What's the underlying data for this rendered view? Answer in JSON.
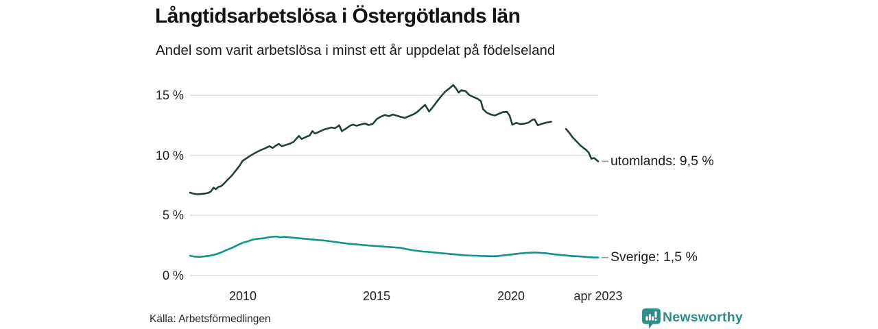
{
  "footer": {
    "source": "Källa: Arbetsförmedlingen",
    "brand": "Newsworthy"
  },
  "colors": {
    "utomlands_line": "#21403c",
    "sverige_line": "#11948a",
    "grid": "#e4e4e8",
    "connector": "#999999",
    "text": "#1a1a1a",
    "brand": "#2e8c8a"
  },
  "chart_data": {
    "type": "line",
    "title": "Långtidsarbetslösa i Östergötlands län",
    "subtitle": "Andel som varit arbetslösa i minst ett år uppdelat på födelseland",
    "xlabel": "",
    "ylabel": "",
    "unit": "%",
    "grid": "horizontal-only",
    "legend_position": "direct-labels-right",
    "x_axis": {
      "range": [
        2008.0,
        2023.25
      ],
      "ticks": [
        {
          "label": "2010",
          "year": 2010
        },
        {
          "label": "2015",
          "year": 2015
        },
        {
          "label": "2020",
          "year": 2020
        },
        {
          "label": "apr 2023",
          "year": 2023.25
        }
      ]
    },
    "y_axis": {
      "range": [
        0,
        16.6
      ],
      "ticks": [
        {
          "label": "15 %",
          "value": 15
        },
        {
          "label": "10 %",
          "value": 10
        },
        {
          "label": "5 %",
          "value": 5
        },
        {
          "label": "0 %",
          "value": 0
        }
      ]
    },
    "series": [
      {
        "name": "utomlands",
        "label": "utomlands: 9,5 %",
        "end_value": 9.5,
        "color": "#21403c",
        "segments": [
          [
            [
              2008.04,
              6.9
            ],
            [
              2008.15,
              6.82
            ],
            [
              2008.3,
              6.76
            ],
            [
              2008.45,
              6.78
            ],
            [
              2008.6,
              6.82
            ],
            [
              2008.72,
              6.88
            ],
            [
              2008.82,
              7.0
            ],
            [
              2008.92,
              7.32
            ],
            [
              2009.0,
              7.18
            ],
            [
              2009.1,
              7.38
            ],
            [
              2009.2,
              7.44
            ],
            [
              2009.32,
              7.68
            ],
            [
              2009.42,
              7.92
            ],
            [
              2009.5,
              8.1
            ],
            [
              2009.6,
              8.32
            ],
            [
              2009.7,
              8.6
            ],
            [
              2009.8,
              8.88
            ],
            [
              2009.9,
              9.18
            ],
            [
              2010.0,
              9.55
            ],
            [
              2010.12,
              9.72
            ],
            [
              2010.25,
              9.92
            ],
            [
              2010.4,
              10.12
            ],
            [
              2010.55,
              10.3
            ],
            [
              2010.7,
              10.46
            ],
            [
              2010.85,
              10.6
            ],
            [
              2011.0,
              10.76
            ],
            [
              2011.12,
              10.62
            ],
            [
              2011.25,
              10.82
            ],
            [
              2011.35,
              10.95
            ],
            [
              2011.46,
              10.76
            ],
            [
              2011.6,
              10.86
            ],
            [
              2011.75,
              10.96
            ],
            [
              2011.9,
              11.12
            ],
            [
              2012.0,
              11.38
            ],
            [
              2012.1,
              11.62
            ],
            [
              2012.2,
              11.36
            ],
            [
              2012.35,
              11.52
            ],
            [
              2012.5,
              11.66
            ],
            [
              2012.6,
              12.02
            ],
            [
              2012.7,
              11.82
            ],
            [
              2012.85,
              11.96
            ],
            [
              2013.0,
              12.12
            ],
            [
              2013.15,
              12.22
            ],
            [
              2013.3,
              12.32
            ],
            [
              2013.45,
              12.26
            ],
            [
              2013.6,
              12.5
            ],
            [
              2013.7,
              12.02
            ],
            [
              2013.85,
              12.22
            ],
            [
              2014.0,
              12.46
            ],
            [
              2014.12,
              12.56
            ],
            [
              2014.25,
              12.46
            ],
            [
              2014.4,
              12.56
            ],
            [
              2014.55,
              12.66
            ],
            [
              2014.7,
              12.52
            ],
            [
              2014.85,
              12.62
            ],
            [
              2015.0,
              13.02
            ],
            [
              2015.15,
              13.22
            ],
            [
              2015.3,
              13.36
            ],
            [
              2015.45,
              13.26
            ],
            [
              2015.6,
              13.4
            ],
            [
              2015.75,
              13.3
            ],
            [
              2015.9,
              13.2
            ],
            [
              2016.05,
              13.12
            ],
            [
              2016.2,
              13.26
            ],
            [
              2016.35,
              13.4
            ],
            [
              2016.5,
              13.6
            ],
            [
              2016.65,
              13.9
            ],
            [
              2016.8,
              14.2
            ],
            [
              2016.95,
              13.65
            ],
            [
              2017.1,
              14.05
            ],
            [
              2017.25,
              14.5
            ],
            [
              2017.4,
              14.92
            ],
            [
              2017.55,
              15.3
            ],
            [
              2017.7,
              15.56
            ],
            [
              2017.85,
              15.85
            ],
            [
              2017.95,
              15.58
            ],
            [
              2018.05,
              15.22
            ],
            [
              2018.15,
              15.42
            ],
            [
              2018.3,
              15.36
            ],
            [
              2018.45,
              15.02
            ],
            [
              2018.6,
              14.86
            ],
            [
              2018.75,
              14.72
            ],
            [
              2018.88,
              14.52
            ],
            [
              2018.96,
              13.85
            ],
            [
              2019.1,
              13.55
            ],
            [
              2019.25,
              13.4
            ],
            [
              2019.4,
              13.32
            ],
            [
              2019.55,
              13.46
            ],
            [
              2019.7,
              13.6
            ],
            [
              2019.85,
              13.62
            ],
            [
              2019.95,
              13.32
            ],
            [
              2020.05,
              12.56
            ],
            [
              2020.2,
              12.7
            ],
            [
              2020.35,
              12.6
            ],
            [
              2020.5,
              12.64
            ],
            [
              2020.65,
              12.72
            ],
            [
              2020.8,
              12.96
            ],
            [
              2020.88,
              13.0
            ],
            [
              2021.0,
              12.5
            ],
            [
              2021.15,
              12.62
            ],
            [
              2021.3,
              12.72
            ],
            [
              2021.5,
              12.8
            ]
          ],
          [
            [
              2022.05,
              12.2
            ],
            [
              2022.15,
              11.95
            ],
            [
              2022.3,
              11.5
            ],
            [
              2022.45,
              11.15
            ],
            [
              2022.6,
              10.8
            ],
            [
              2022.7,
              10.62
            ],
            [
              2022.8,
              10.46
            ],
            [
              2022.9,
              10.22
            ],
            [
              2023.0,
              9.72
            ],
            [
              2023.1,
              9.78
            ],
            [
              2023.25,
              9.5
            ]
          ]
        ]
      },
      {
        "name": "sverige",
        "label": "Sverige: 1,5 %",
        "end_value": 1.5,
        "color": "#11948a",
        "segments": [
          [
            [
              2008.04,
              1.65
            ],
            [
              2008.2,
              1.58
            ],
            [
              2008.4,
              1.55
            ],
            [
              2008.6,
              1.6
            ],
            [
              2008.8,
              1.66
            ],
            [
              2009.0,
              1.76
            ],
            [
              2009.2,
              1.92
            ],
            [
              2009.4,
              2.12
            ],
            [
              2009.6,
              2.3
            ],
            [
              2009.8,
              2.52
            ],
            [
              2010.0,
              2.72
            ],
            [
              2010.2,
              2.85
            ],
            [
              2010.4,
              3.0
            ],
            [
              2010.6,
              3.06
            ],
            [
              2010.8,
              3.1
            ],
            [
              2010.95,
              3.18
            ],
            [
              2011.1,
              3.22
            ],
            [
              2011.25,
              3.25
            ],
            [
              2011.4,
              3.18
            ],
            [
              2011.55,
              3.22
            ],
            [
              2011.7,
              3.2
            ],
            [
              2011.9,
              3.14
            ],
            [
              2012.1,
              3.1
            ],
            [
              2012.3,
              3.06
            ],
            [
              2012.5,
              3.02
            ],
            [
              2012.7,
              2.98
            ],
            [
              2012.9,
              2.94
            ],
            [
              2013.1,
              2.9
            ],
            [
              2013.3,
              2.84
            ],
            [
              2013.5,
              2.78
            ],
            [
              2013.7,
              2.72
            ],
            [
              2013.9,
              2.66
            ],
            [
              2014.1,
              2.62
            ],
            [
              2014.3,
              2.58
            ],
            [
              2014.5,
              2.54
            ],
            [
              2014.7,
              2.5
            ],
            [
              2014.9,
              2.47
            ],
            [
              2015.1,
              2.44
            ],
            [
              2015.3,
              2.4
            ],
            [
              2015.5,
              2.37
            ],
            [
              2015.7,
              2.33
            ],
            [
              2015.9,
              2.3
            ],
            [
              2016.1,
              2.2
            ],
            [
              2016.3,
              2.12
            ],
            [
              2016.5,
              2.06
            ],
            [
              2016.7,
              2.0
            ],
            [
              2016.9,
              1.97
            ],
            [
              2017.1,
              1.93
            ],
            [
              2017.3,
              1.88
            ],
            [
              2017.5,
              1.84
            ],
            [
              2017.7,
              1.8
            ],
            [
              2017.9,
              1.76
            ],
            [
              2018.1,
              1.72
            ],
            [
              2018.3,
              1.68
            ],
            [
              2018.5,
              1.66
            ],
            [
              2018.7,
              1.65
            ],
            [
              2018.9,
              1.63
            ],
            [
              2019.1,
              1.62
            ],
            [
              2019.3,
              1.6
            ],
            [
              2019.5,
              1.62
            ],
            [
              2019.7,
              1.67
            ],
            [
              2019.9,
              1.72
            ],
            [
              2020.1,
              1.78
            ],
            [
              2020.3,
              1.83
            ],
            [
              2020.5,
              1.87
            ],
            [
              2020.7,
              1.9
            ],
            [
              2020.9,
              1.92
            ],
            [
              2021.1,
              1.89
            ],
            [
              2021.3,
              1.86
            ],
            [
              2021.5,
              1.8
            ],
            [
              2021.7,
              1.75
            ],
            [
              2021.9,
              1.7
            ],
            [
              2022.1,
              1.66
            ],
            [
              2022.3,
              1.62
            ],
            [
              2022.5,
              1.6
            ],
            [
              2022.7,
              1.56
            ],
            [
              2022.9,
              1.53
            ],
            [
              2023.1,
              1.5
            ],
            [
              2023.25,
              1.5
            ]
          ]
        ]
      }
    ]
  }
}
